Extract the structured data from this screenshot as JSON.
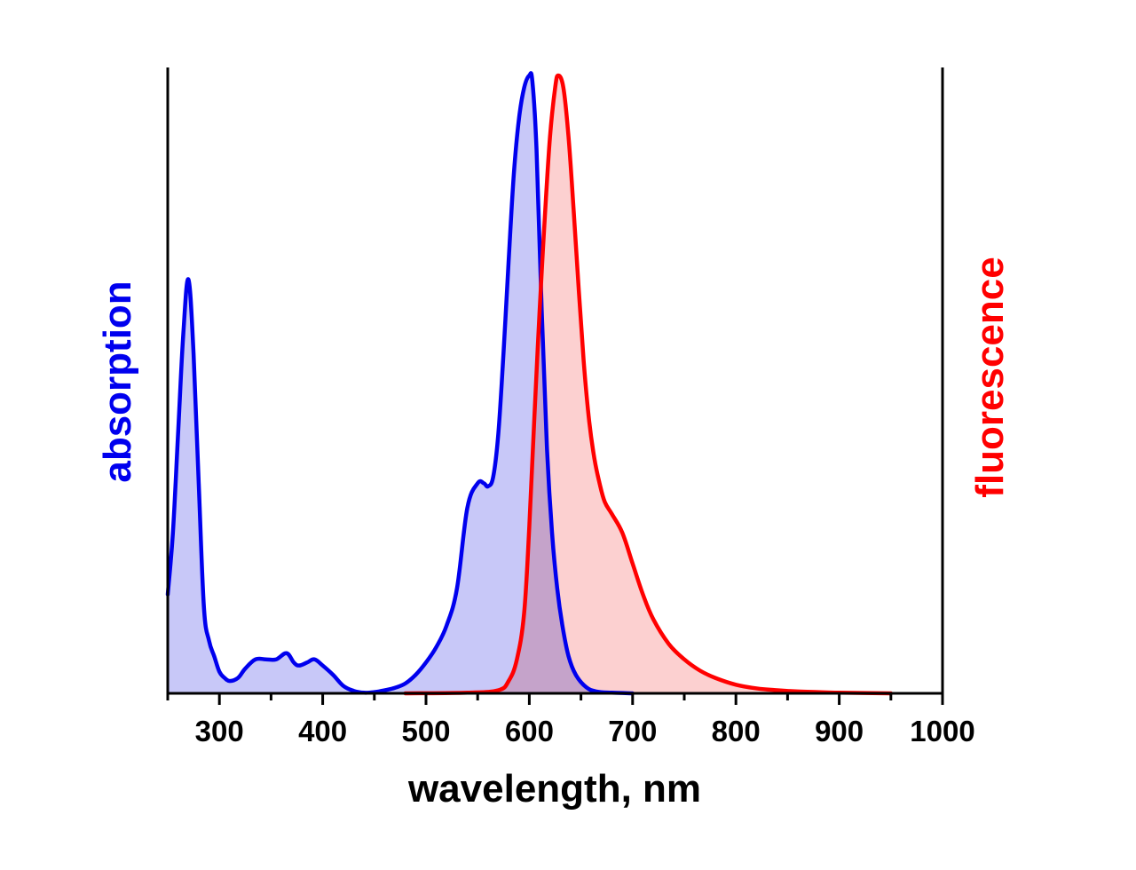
{
  "chart_data": {
    "type": "area",
    "title": "",
    "xlabel": "wavelength, nm",
    "ylabel_left": "absorption",
    "ylabel_right": "fluorescence",
    "xlim": [
      250,
      1000
    ],
    "ylim": [
      0,
      1
    ],
    "x_ticks": [
      300,
      400,
      500,
      600,
      700,
      800,
      900,
      1000
    ],
    "grid": false,
    "colors": {
      "absorption_line": "#0000ee",
      "absorption_fill": "#c8c8f8",
      "fluorescence_line": "#ff0000",
      "fluorescence_fill": "#fcc8c8"
    },
    "series": [
      {
        "axis": "left",
        "x": [
          250,
          255,
          260,
          265,
          270,
          275,
          280,
          285,
          290,
          295,
          300,
          305,
          310,
          318,
          325,
          335,
          345,
          355,
          365,
          372,
          377,
          385,
          392,
          400,
          410,
          420,
          430,
          440,
          450,
          460,
          470,
          480,
          490,
          500,
          510,
          520,
          530,
          540,
          550,
          556,
          560,
          565,
          570,
          575,
          580,
          585,
          590,
          595,
          600,
          603,
          607,
          612,
          617,
          622,
          627,
          632,
          638,
          645,
          655,
          665,
          680,
          700
        ],
        "values": [
          0.16,
          0.26,
          0.42,
          0.58,
          0.67,
          0.55,
          0.34,
          0.14,
          0.085,
          0.06,
          0.035,
          0.025,
          0.02,
          0.025,
          0.04,
          0.055,
          0.055,
          0.055,
          0.065,
          0.05,
          0.045,
          0.05,
          0.055,
          0.045,
          0.03,
          0.012,
          0.004,
          0.001,
          0.002,
          0.005,
          0.009,
          0.016,
          0.03,
          0.05,
          0.075,
          0.11,
          0.17,
          0.3,
          0.34,
          0.34,
          0.335,
          0.35,
          0.42,
          0.55,
          0.7,
          0.84,
          0.93,
          0.98,
          1.0,
          0.99,
          0.88,
          0.62,
          0.4,
          0.26,
          0.17,
          0.11,
          0.06,
          0.03,
          0.01,
          0.003,
          0.001,
          0.0
        ]
      },
      {
        "axis": "right",
        "x": [
          480,
          540,
          570,
          580,
          588,
          595,
          600,
          605,
          610,
          615,
          620,
          625,
          628,
          633,
          638,
          643,
          648,
          653,
          658,
          663,
          668,
          673,
          680,
          690,
          700,
          710,
          720,
          735,
          750,
          765,
          780,
          800,
          820,
          840,
          860,
          880,
          900,
          950
        ],
        "values": [
          0.0,
          0.001,
          0.005,
          0.02,
          0.055,
          0.13,
          0.27,
          0.45,
          0.62,
          0.77,
          0.9,
          0.98,
          1.0,
          0.98,
          0.9,
          0.78,
          0.65,
          0.53,
          0.44,
          0.38,
          0.34,
          0.31,
          0.29,
          0.26,
          0.21,
          0.16,
          0.12,
          0.08,
          0.055,
          0.037,
          0.025,
          0.014,
          0.008,
          0.005,
          0.003,
          0.002,
          0.001,
          0.0
        ]
      }
    ]
  }
}
